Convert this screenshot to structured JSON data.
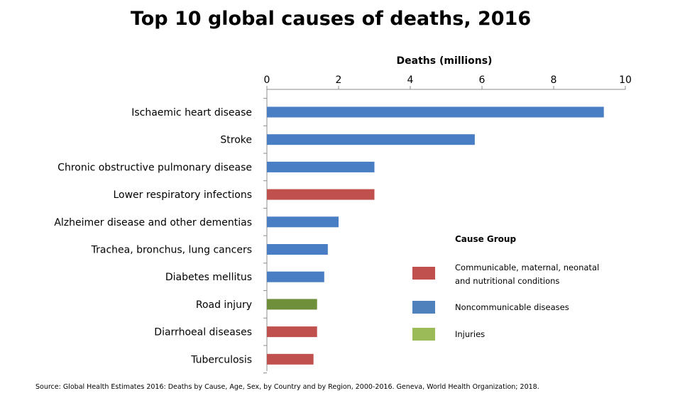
{
  "chart_data": {
    "type": "bar",
    "orientation": "horizontal",
    "title": "Top 10 global causes of deaths, 2016",
    "xlabel": "Deaths (millions)",
    "ylabel": "",
    "xlim": [
      0,
      10
    ],
    "xticks": [
      0,
      2,
      4,
      6,
      8,
      10
    ],
    "axis_position": "top",
    "grid": false,
    "categories": [
      "Ischaemic heart disease",
      "Stroke",
      "Chronic obstructive pulmonary disease",
      "Lower respiratory infections",
      "Alzheimer disease and other dementias",
      "Trachea, bronchus, lung cancers",
      "Diabetes mellitus",
      "Road injury",
      "Diarrhoeal diseases",
      "Tuberculosis"
    ],
    "values": [
      9.4,
      5.8,
      3.0,
      3.0,
      2.0,
      1.7,
      1.6,
      1.4,
      1.4,
      1.3
    ],
    "groups": [
      "Noncommunicable diseases",
      "Noncommunicable diseases",
      "Noncommunicable diseases",
      "Communicable, maternal, neonatal and nutritional conditions",
      "Noncommunicable diseases",
      "Noncommunicable diseases",
      "Noncommunicable diseases",
      "Injuries",
      "Communicable, maternal, neonatal and nutritional conditions",
      "Communicable, maternal, neonatal and nutritional conditions"
    ],
    "legend": {
      "title": "Cause Group",
      "placement": "bottom-right",
      "entries": [
        {
          "name": "Communicable, maternal, neonatal and nutritional conditions",
          "lines": [
            "Communicable, maternal, neonatal",
            "and nutritional conditions"
          ],
          "color": "#c0504d",
          "bar_color": "#c0504d"
        },
        {
          "name": "Noncommunicable diseases",
          "lines": [
            "Noncommunicable diseases"
          ],
          "color": "#4f81bd",
          "bar_color": "#4a7ec4"
        },
        {
          "name": "Injuries",
          "lines": [
            "Injuries"
          ],
          "color": "#9bbb59",
          "bar_color": "#6f8f3a"
        }
      ]
    },
    "source": "Source:  Global Health Estimates  2016: Deaths by Cause, Age,  Sex, by Country and by Region,  2000-2016. Geneva, World Health Organization;  2018."
  }
}
